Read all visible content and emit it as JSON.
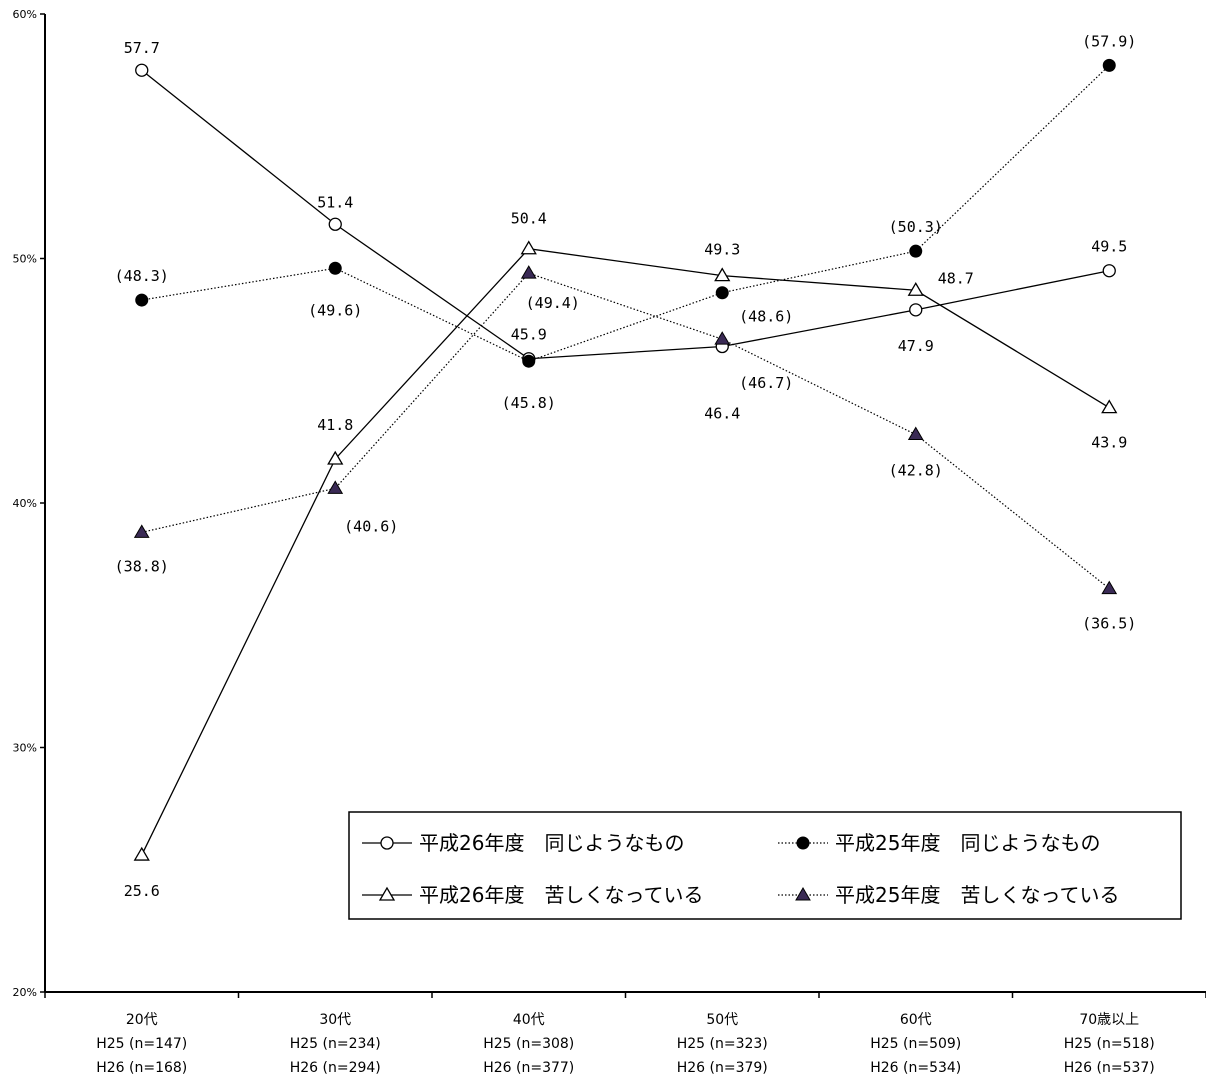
{
  "chart_data": {
    "type": "line",
    "categories": [
      "20代",
      "30代",
      "40代",
      "50代",
      "60代",
      "70歳以上"
    ],
    "category_sublabels": [
      [
        "H25 (n=147)",
        "H26 (n=168)"
      ],
      [
        "H25 (n=234)",
        "H26 (n=294)"
      ],
      [
        "H25 (n=308)",
        "H26 (n=377)"
      ],
      [
        "H25 (n=323)",
        "H26 (n=379)"
      ],
      [
        "H25 (n=509)",
        "H26 (n=534)"
      ],
      [
        "H25 (n=518)",
        "H26 (n=537)"
      ]
    ],
    "y_ticks": [
      "20%",
      "30%",
      "40%",
      "50%",
      "60%"
    ],
    "ylim": [
      20,
      60
    ],
    "grid": false,
    "legend_position": "bottom-right",
    "series": [
      {
        "name": "平成26年度　同じようなもの",
        "marker": "open-circle",
        "line": "solid",
        "values": [
          57.7,
          51.4,
          45.9,
          46.4,
          47.9,
          49.5
        ],
        "labels": [
          "57.7",
          "51.4",
          "45.9",
          "46.4",
          "47.9",
          "49.5"
        ]
      },
      {
        "name": "平成25年度　同じようなもの",
        "marker": "filled-circle",
        "line": "dotted",
        "values": [
          48.3,
          49.6,
          45.8,
          48.6,
          50.3,
          57.9
        ],
        "labels": [
          "(48.3)",
          "(49.6)",
          "(45.8)",
          "(48.6)",
          "(50.3)",
          "(57.9)"
        ]
      },
      {
        "name": "平成26年度　苦しくなっている",
        "marker": "open-triangle",
        "line": "solid",
        "values": [
          25.6,
          41.8,
          50.4,
          49.3,
          48.7,
          43.9
        ],
        "labels": [
          "25.6",
          "41.8",
          "50.4",
          "49.3",
          "48.7",
          "43.9"
        ]
      },
      {
        "name": "平成25年度　苦しくなっている",
        "marker": "filled-triangle",
        "line": "dotted",
        "values": [
          38.8,
          40.6,
          49.4,
          46.7,
          42.8,
          36.5
        ],
        "labels": [
          "(38.8)",
          "(40.6)",
          "(49.4)",
          "(46.7)",
          "(42.8)",
          "(36.5)"
        ]
      }
    ],
    "colors": {
      "axis": "#000000",
      "filled_triangle": "#3a2a55"
    }
  }
}
